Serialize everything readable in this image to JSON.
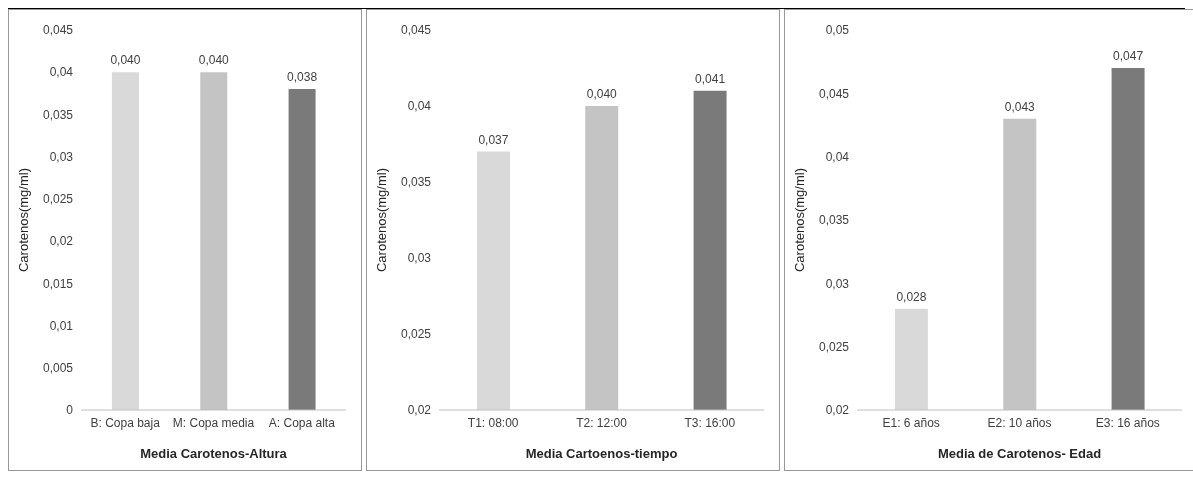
{
  "chart_data": [
    {
      "type": "bar",
      "xlabel": "Media  Carotenos-Altura",
      "ylabel": "Carotenos(mg/ml)",
      "categories": [
        "B: Copa baja",
        "M: Copa media",
        "A: Copa alta"
      ],
      "values": [
        0.04,
        0.04,
        0.038
      ],
      "value_labels": [
        "0,040",
        "0,040",
        "0,038"
      ],
      "colors": [
        "#d9d9d9",
        "#c4c4c4",
        "#7a7a7a"
      ],
      "ylim": [
        0,
        0.045
      ],
      "yticks": [
        {
          "value": 0,
          "label": "0"
        },
        {
          "value": 0.005,
          "label": "0,005"
        },
        {
          "value": 0.01,
          "label": "0,01"
        },
        {
          "value": 0.015,
          "label": "0,015"
        },
        {
          "value": 0.02,
          "label": "0,02"
        },
        {
          "value": 0.025,
          "label": "0,025"
        },
        {
          "value": 0.03,
          "label": "0,03"
        },
        {
          "value": 0.035,
          "label": "0,035"
        },
        {
          "value": 0.04,
          "label": "0,04"
        },
        {
          "value": 0.045,
          "label": "0,045"
        }
      ],
      "grid": false,
      "legend": false
    },
    {
      "type": "bar",
      "xlabel": "Media Cartoenos-tiempo",
      "ylabel": "Carotenos(mg/ml)",
      "categories": [
        "T1: 08:00",
        "T2: 12:00",
        "T3: 16:00"
      ],
      "values": [
        0.037,
        0.04,
        0.041
      ],
      "value_labels": [
        "0,037",
        "0,040",
        "0,041"
      ],
      "colors": [
        "#d9d9d9",
        "#c4c4c4",
        "#7a7a7a"
      ],
      "ylim": [
        0.02,
        0.045
      ],
      "yticks": [
        {
          "value": 0.02,
          "label": "0,02"
        },
        {
          "value": 0.025,
          "label": "0,025"
        },
        {
          "value": 0.03,
          "label": "0,03"
        },
        {
          "value": 0.035,
          "label": "0,035"
        },
        {
          "value": 0.04,
          "label": "0,04"
        },
        {
          "value": 0.045,
          "label": "0,045"
        }
      ],
      "grid": false,
      "legend": false
    },
    {
      "type": "bar",
      "xlabel": "Media de Carotenos- Edad",
      "ylabel": "Carotenos(mg/ml)",
      "categories": [
        "E1: 6 años",
        "E2: 10 años",
        "E3: 16 años"
      ],
      "values": [
        0.028,
        0.043,
        0.047
      ],
      "value_labels": [
        "0,028",
        "0,043",
        "0,047"
      ],
      "colors": [
        "#d9d9d9",
        "#c4c4c4",
        "#7a7a7a"
      ],
      "ylim": [
        0.02,
        0.05
      ],
      "yticks": [
        {
          "value": 0.02,
          "label": "0,02"
        },
        {
          "value": 0.025,
          "label": "0,025"
        },
        {
          "value": 0.03,
          "label": "0,03"
        },
        {
          "value": 0.035,
          "label": "0,035"
        },
        {
          "value": 0.04,
          "label": "0,04"
        },
        {
          "value": 0.045,
          "label": "0,045"
        },
        {
          "value": 0.05,
          "label": "0,05"
        }
      ],
      "grid": false,
      "legend": false
    }
  ]
}
